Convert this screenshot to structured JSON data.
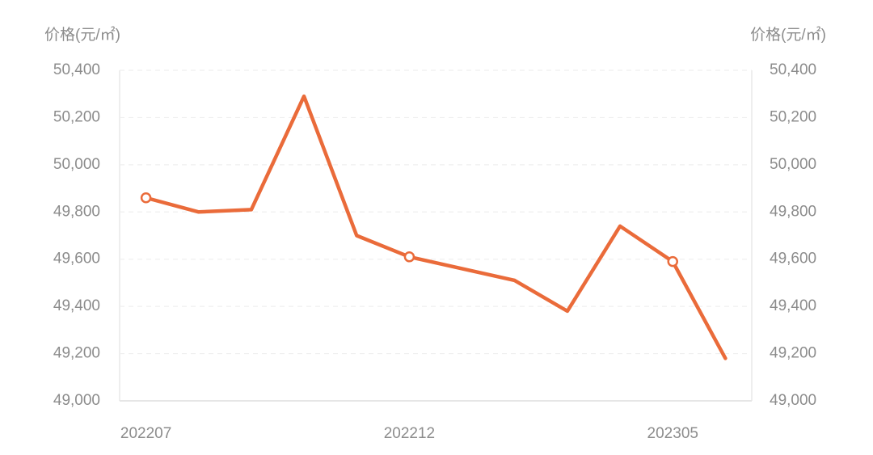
{
  "chart_data": {
    "type": "line",
    "y_label": "价格(元/㎡)",
    "y2_label": "价格(元/㎡)",
    "categories": [
      "202207",
      null,
      null,
      null,
      null,
      "202212",
      null,
      null,
      null,
      null,
      "202305",
      null
    ],
    "series": [
      {
        "color": "#ea6b3a",
        "values": [
          49860,
          49800,
          49810,
          50290,
          49700,
          49610,
          49560,
          49510,
          49380,
          49740,
          49590,
          49180
        ]
      }
    ],
    "ylim": [
      49000,
      50400
    ],
    "yticks": [
      {
        "value": 49000,
        "label": "49,000"
      },
      {
        "value": 49200,
        "label": "49,200"
      },
      {
        "value": 49400,
        "label": "49,400"
      },
      {
        "value": 49600,
        "label": "49,600"
      },
      {
        "value": 49800,
        "label": "49,800"
      },
      {
        "value": 50000,
        "label": "50,000"
      },
      {
        "value": 50200,
        "label": "50,200"
      },
      {
        "value": 50400,
        "label": "50,400"
      }
    ],
    "y2lim": [
      49000,
      50400
    ],
    "y2ticks": [
      {
        "value": 49000,
        "label": "49,000"
      },
      {
        "value": 49200,
        "label": "49,200"
      },
      {
        "value": 49400,
        "label": "49,400"
      },
      {
        "value": 49600,
        "label": "49,600"
      },
      {
        "value": 49800,
        "label": "49,800"
      },
      {
        "value": 50000,
        "label": "50,000"
      },
      {
        "value": 50200,
        "label": "50,200"
      },
      {
        "value": 50400,
        "label": "50,400"
      }
    ],
    "grid": true
  }
}
